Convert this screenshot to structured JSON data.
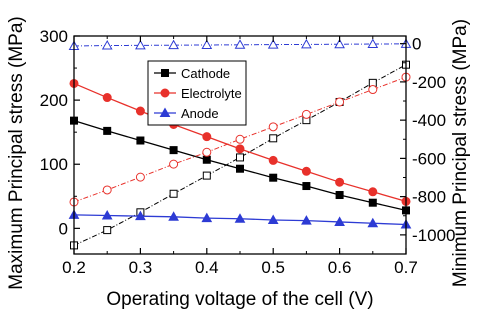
{
  "chart_data": {
    "type": "line",
    "xlabel": "Operating voltage of the cell (V)",
    "ylabel_left": "Maximum Principal stress (MPa)",
    "ylabel_right": "Minimum Principal stress (MPa)",
    "xlim": [
      0.2,
      0.7
    ],
    "ylim_left": [
      -40,
      300
    ],
    "ylim_right": [
      -1100,
      40
    ],
    "x_ticks": [
      0.2,
      0.3,
      0.4,
      0.5,
      0.6,
      0.7
    ],
    "y_left_ticks": [
      0,
      100,
      200,
      300
    ],
    "y_right_ticks": [
      0,
      -200,
      -400,
      -600,
      -800,
      -1000
    ],
    "x": [
      0.2,
      0.25,
      0.3,
      0.35,
      0.4,
      0.45,
      0.5,
      0.55,
      0.6,
      0.65,
      0.7
    ],
    "legend_position": "top-center",
    "series": [
      {
        "name": "Cathode",
        "color": "#000000",
        "marker": "square",
        "axis": "left",
        "values": [
          168,
          152,
          137,
          122,
          107,
          93,
          79,
          66,
          52,
          40,
          28
        ],
        "min_axis_values": [
          -1055,
          -975,
          -882,
          -785,
          -690,
          -595,
          -495,
          -400,
          -305,
          -205,
          -110
        ]
      },
      {
        "name": "Electrolyte",
        "color": "#e8312b",
        "marker": "circle",
        "axis": "left",
        "values": [
          226,
          204,
          183,
          162,
          143,
          124,
          106,
          89,
          72,
          57,
          42
        ],
        "min_axis_values": [
          -828,
          -765,
          -698,
          -630,
          -568,
          -500,
          -435,
          -370,
          -305,
          -240,
          -175
        ]
      },
      {
        "name": "Anode",
        "color": "#2d3bd4",
        "marker": "triangle",
        "axis": "left",
        "values": [
          21,
          20,
          19,
          18,
          16,
          15,
          13,
          12,
          10,
          8,
          6
        ],
        "min_axis_values": [
          -12,
          -10,
          -9,
          -8,
          -7,
          -6,
          -5,
          -4,
          -3,
          -2,
          -1
        ]
      }
    ]
  }
}
